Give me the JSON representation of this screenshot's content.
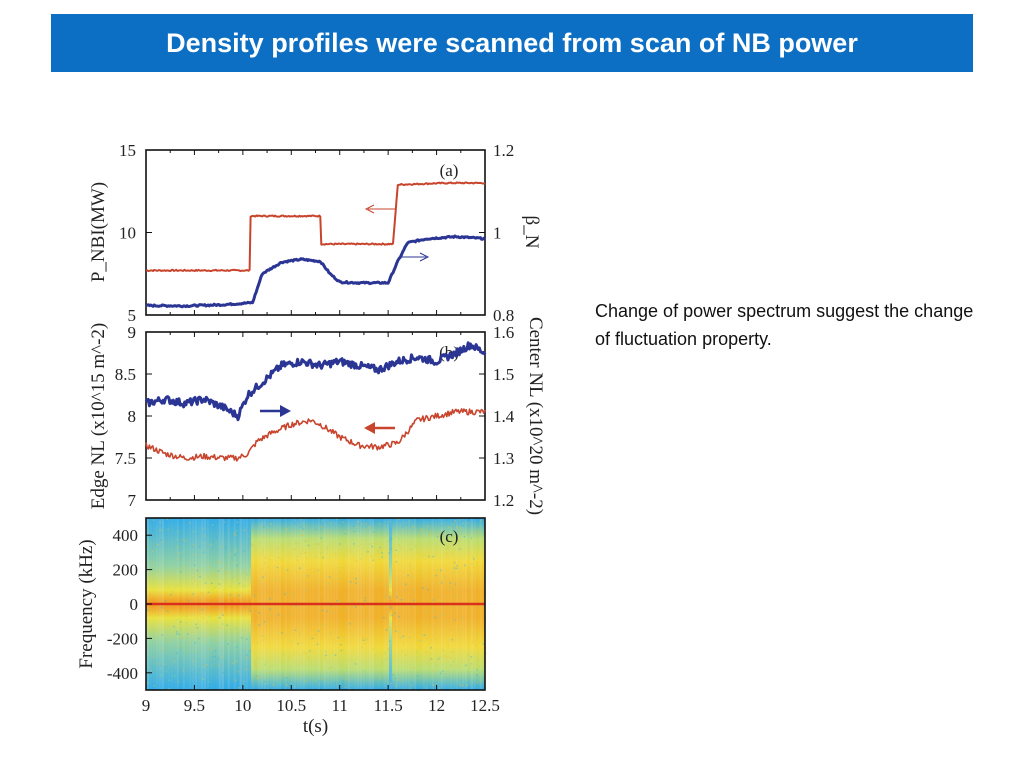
{
  "slide": {
    "title": "Density profiles were scanned from scan of NB power",
    "caption": "Change of power spectrum suggest the change of fluctuation property."
  },
  "colors": {
    "title_bar": "#0d6fc4",
    "red_series": "#c8442c",
    "blue_series": "#2b3594"
  },
  "chart_data": [
    {
      "type": "line",
      "panel_label": "(a)",
      "x_range": [
        9,
        12.5
      ],
      "ylabel_left": "P_NBI(MW)",
      "ylabel_right": "β_N",
      "ylim_left": [
        5,
        15
      ],
      "ylim_right": [
        0.8,
        1.2
      ],
      "yticks_left": [
        "5",
        "10",
        "15"
      ],
      "yticks_right": [
        "0.8",
        "1",
        "1.2"
      ],
      "series": [
        {
          "axis": "left",
          "x": [
            9.0,
            10.07,
            10.08,
            10.8,
            10.81,
            11.55,
            11.6,
            12.1,
            12.5
          ],
          "y": [
            7.7,
            7.7,
            11.0,
            11.0,
            9.3,
            9.3,
            12.9,
            13.0,
            13.0
          ]
        },
        {
          "axis": "right",
          "x": [
            9.0,
            9.4,
            9.8,
            10.1,
            10.2,
            10.4,
            10.6,
            10.8,
            10.9,
            11.0,
            11.2,
            11.5,
            11.6,
            11.7,
            11.9,
            12.2,
            12.5
          ],
          "y": [
            0.823,
            0.822,
            0.825,
            0.83,
            0.9,
            0.928,
            0.935,
            0.93,
            0.9,
            0.88,
            0.878,
            0.878,
            0.93,
            0.975,
            0.985,
            0.99,
            0.985
          ]
        }
      ]
    },
    {
      "type": "line",
      "panel_label": "(b)",
      "x_range": [
        9,
        12.5
      ],
      "ylabel_left": "Edge NL (x10^15 m^-2)",
      "ylabel_right": "Center NL (x10^20 m^-2)",
      "ylim_left": [
        7,
        9
      ],
      "ylim_right": [
        1.2,
        1.6
      ],
      "yticks_left": [
        "7",
        "7.5",
        "8",
        "8.5",
        "9"
      ],
      "yticks_right": [
        "1.2",
        "1.3",
        "1.4",
        "1.5",
        "1.6"
      ],
      "series": [
        {
          "axis": "left",
          "x": [
            9.0,
            9.2,
            9.4,
            9.6,
            9.8,
            9.95,
            10.05,
            10.15,
            10.3,
            10.5,
            10.7,
            10.8,
            11.0,
            11.2,
            11.4,
            11.6,
            11.8,
            12.0,
            12.2,
            12.4,
            12.5
          ],
          "y": [
            7.65,
            7.55,
            7.5,
            7.52,
            7.5,
            7.5,
            7.55,
            7.7,
            7.8,
            7.9,
            7.95,
            7.9,
            7.75,
            7.65,
            7.63,
            7.68,
            7.95,
            8.0,
            8.05,
            8.05,
            8.05
          ]
        },
        {
          "axis": "right",
          "x": [
            9.0,
            9.2,
            9.4,
            9.6,
            9.8,
            9.95,
            10.05,
            10.2,
            10.4,
            10.6,
            10.8,
            11.0,
            11.2,
            11.4,
            11.6,
            11.8,
            12.0,
            12.2,
            12.35,
            12.5
          ],
          "y": [
            1.43,
            1.44,
            1.43,
            1.44,
            1.42,
            1.4,
            1.45,
            1.48,
            1.52,
            1.53,
            1.52,
            1.53,
            1.52,
            1.51,
            1.53,
            1.54,
            1.53,
            1.55,
            1.57,
            1.55
          ]
        }
      ]
    },
    {
      "type": "heatmap",
      "panel_label": "(c)",
      "xlabel": "t(s)",
      "ylabel": "Frequency (kHz)",
      "x_range": [
        9,
        12.5
      ],
      "ylim": [
        -500,
        500
      ],
      "xticks": [
        "9",
        "9.5",
        "10",
        "10.5",
        "11",
        "11.5",
        "12",
        "12.5"
      ],
      "yticks": [
        "400",
        "200",
        "0",
        "-200",
        "-400"
      ],
      "colors": [
        "#2eaae8",
        "#e8e03a",
        "#f0a020",
        "#d8301c"
      ]
    }
  ]
}
